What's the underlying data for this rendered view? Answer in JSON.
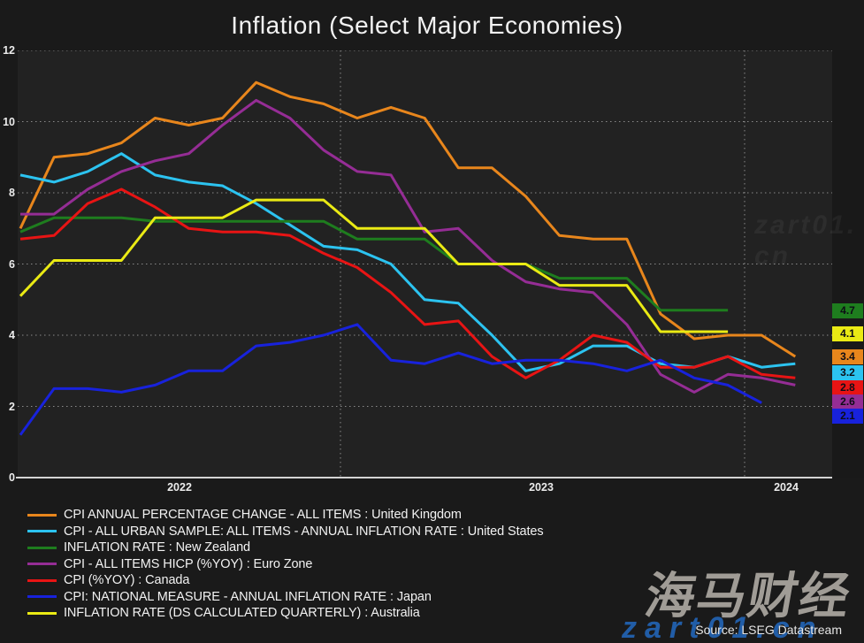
{
  "title": "Inflation (Select Major Economies)",
  "source": "Source: LSEG Datastream",
  "watermarks": {
    "brand": "海马财经",
    "site": "zart01.cn",
    "faint": "zart01.cn"
  },
  "chart_data": {
    "type": "line",
    "title": "Inflation (Select Major Economies)",
    "x_start": "2022-03",
    "x_end": "2024-02",
    "x_frequency": "monthly",
    "x_tick_labels": [
      "2022",
      "2023",
      "2024"
    ],
    "ylabel": "",
    "ylim": [
      0,
      12
    ],
    "y_ticks": [
      0,
      2,
      4,
      6,
      8,
      10,
      12
    ],
    "grid": "dotted",
    "year_boundary_gridlines": [
      "2023-01",
      "2024-01"
    ],
    "legend_position": "bottom-left",
    "series": [
      {
        "name": "CPI ANNUAL PERCENTAGE CHANGE - ALL ITEMS : United Kingdom",
        "color": "#e8861c",
        "end_label": "3.4",
        "values": [
          7.0,
          9.0,
          9.1,
          9.4,
          10.1,
          9.9,
          10.1,
          11.1,
          10.7,
          10.5,
          10.1,
          10.4,
          10.1,
          8.7,
          8.7,
          7.9,
          6.8,
          6.7,
          6.7,
          4.6,
          3.9,
          4.0,
          4.0,
          3.4
        ]
      },
      {
        "name": "CPI - ALL URBAN SAMPLE: ALL ITEMS - ANNUAL INFLATION RATE : United States",
        "color": "#2cc3f0",
        "end_label": "3.2",
        "values": [
          8.5,
          8.3,
          8.6,
          9.1,
          8.5,
          8.3,
          8.2,
          7.7,
          7.1,
          6.5,
          6.4,
          6.0,
          5.0,
          4.9,
          4.0,
          3.0,
          3.2,
          3.7,
          3.7,
          3.2,
          3.1,
          3.4,
          3.1,
          3.2
        ]
      },
      {
        "name": "INFLATION RATE : New Zealand",
        "color": "#1e7d1e",
        "end_label": "4.7",
        "values": [
          6.9,
          7.3,
          7.3,
          7.3,
          7.2,
          7.2,
          7.2,
          7.2,
          7.2,
          7.2,
          6.7,
          6.7,
          6.7,
          6.0,
          6.0,
          6.0,
          5.6,
          5.6,
          5.6,
          4.7,
          4.7,
          4.7,
          null,
          null
        ]
      },
      {
        "name": "CPI - ALL ITEMS HICP (%YOY) : Euro Zone",
        "color": "#952d95",
        "end_label": "2.6",
        "values": [
          7.4,
          7.4,
          8.1,
          8.6,
          8.9,
          9.1,
          9.9,
          10.6,
          10.1,
          9.2,
          8.6,
          8.5,
          6.9,
          7.0,
          6.1,
          5.5,
          5.3,
          5.2,
          4.3,
          2.9,
          2.4,
          2.9,
          2.8,
          2.6
        ]
      },
      {
        "name": "CPI (%YOY) : Canada",
        "color": "#e81414",
        "end_label": "2.8",
        "values": [
          6.7,
          6.8,
          7.7,
          8.1,
          7.6,
          7.0,
          6.9,
          6.9,
          6.8,
          6.3,
          5.9,
          5.2,
          4.3,
          4.4,
          3.4,
          2.8,
          3.3,
          4.0,
          3.8,
          3.1,
          3.1,
          3.4,
          2.9,
          2.8
        ]
      },
      {
        "name": "CPI: NATIONAL MEASURE - ANNUAL INFLATION RATE : Japan",
        "color": "#1822dc",
        "end_label": "2.1",
        "values": [
          1.2,
          2.5,
          2.5,
          2.4,
          2.6,
          3.0,
          3.0,
          3.7,
          3.8,
          4.0,
          4.3,
          3.3,
          3.2,
          3.5,
          3.2,
          3.3,
          3.3,
          3.2,
          3.0,
          3.3,
          2.8,
          2.6,
          2.1,
          null
        ]
      },
      {
        "name": "INFLATION RATE (DS CALCULATED QUARTERLY) : Australia",
        "color": "#eaea14",
        "end_label": "4.1",
        "values": [
          5.1,
          6.1,
          6.1,
          6.1,
          7.3,
          7.3,
          7.3,
          7.8,
          7.8,
          7.8,
          7.0,
          7.0,
          7.0,
          6.0,
          6.0,
          6.0,
          5.4,
          5.4,
          5.4,
          4.1,
          4.1,
          4.1,
          null,
          null
        ]
      }
    ],
    "end_value_badges": [
      {
        "text": "4.7",
        "bg": "#1e7d1e"
      },
      {
        "text": "4.1",
        "bg": "#eaea14"
      },
      {
        "text": "3.4",
        "bg": "#e8861c"
      },
      {
        "text": "3.2",
        "bg": "#2cc3f0"
      },
      {
        "text": "2.8",
        "bg": "#e81414"
      },
      {
        "text": "2.6",
        "bg": "#952d95"
      },
      {
        "text": "2.1",
        "bg": "#1822dc"
      }
    ]
  }
}
